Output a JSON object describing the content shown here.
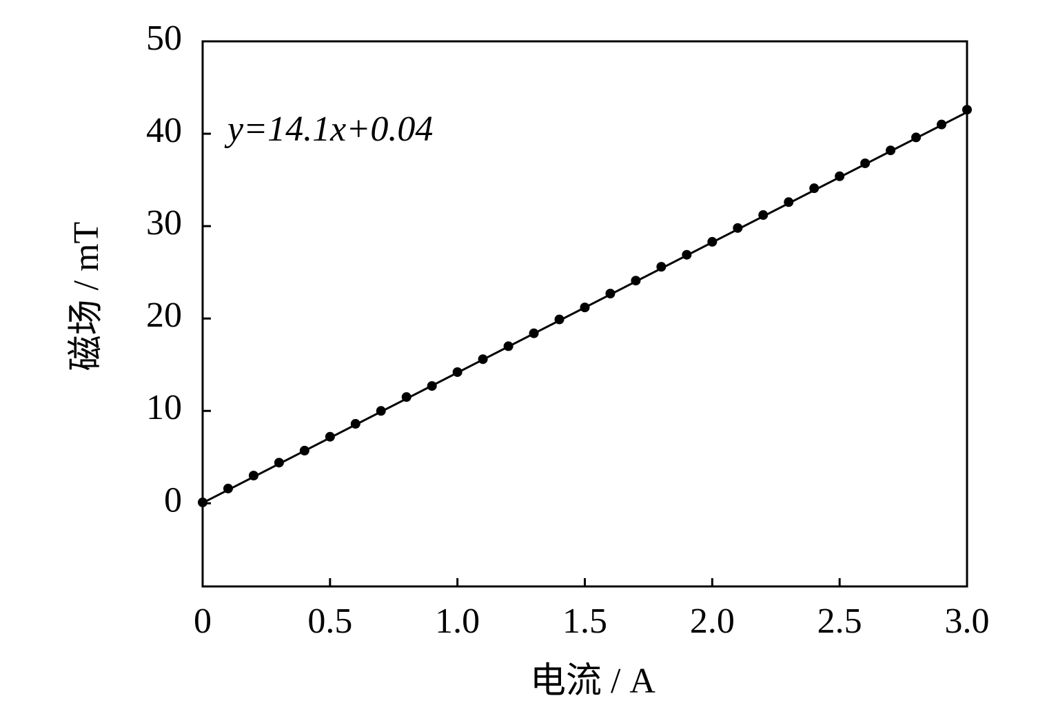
{
  "chart_data": {
    "type": "scatter",
    "x_label": "电流  / A",
    "y_label": "磁场  / mT",
    "annotation": "y=14.1x+0.04",
    "fit": {
      "slope": 14.1,
      "intercept": 0.04
    },
    "x": [
      0,
      0.1,
      0.2,
      0.3,
      0.4,
      0.5,
      0.6,
      0.7,
      0.8,
      0.9,
      1.0,
      1.1,
      1.2,
      1.3,
      1.4,
      1.5,
      1.6,
      1.7,
      1.8,
      1.9,
      2.0,
      2.1,
      2.2,
      2.3,
      2.4,
      2.5,
      2.6,
      2.7,
      2.8,
      2.9,
      3.0
    ],
    "values": [
      0.1,
      1.6,
      3.0,
      4.4,
      5.7,
      7.2,
      8.6,
      10.0,
      11.5,
      12.7,
      14.2,
      15.6,
      17.0,
      18.4,
      19.9,
      21.2,
      22.7,
      24.1,
      25.6,
      26.9,
      28.3,
      29.8,
      31.2,
      32.6,
      34.1,
      35.4,
      36.8,
      38.2,
      39.6,
      41.0,
      42.6
    ],
    "color": "#000000",
    "xlim": [
      0,
      3.0
    ],
    "ylim": [
      -9,
      50
    ],
    "xticks": [
      0,
      0.5,
      {
        "value": 1,
        "label": "1.0"
      },
      1.5,
      {
        "value": 2,
        "label": "2.0"
      },
      2.5,
      {
        "value": 3,
        "label": "3.0"
      }
    ],
    "yticks": [
      0,
      10,
      20,
      30,
      40,
      50
    ]
  }
}
